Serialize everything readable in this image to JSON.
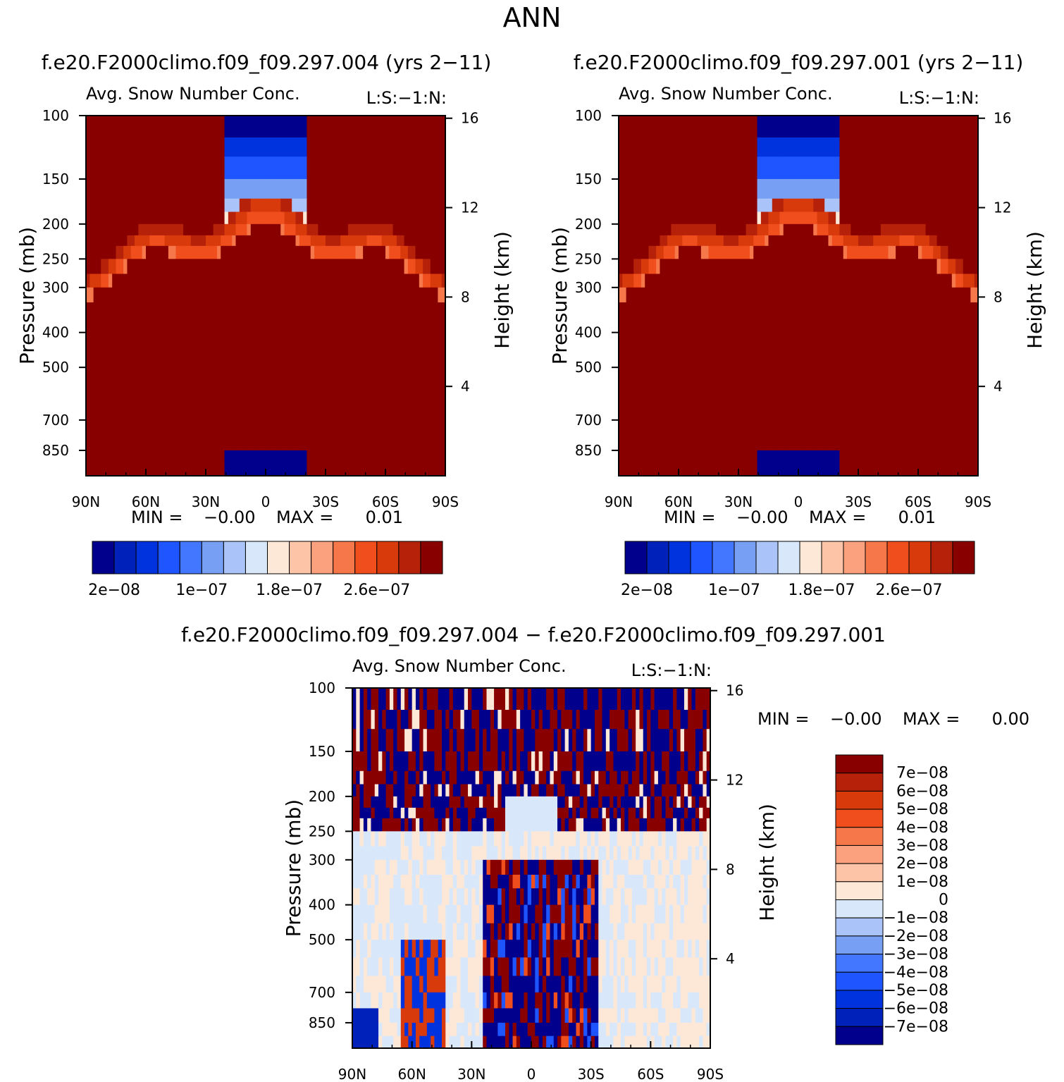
{
  "page_title": "ANN",
  "chart_data": [
    {
      "type": "heatmap",
      "title": "f.e20.F2000climo.f09_f09.297.004 (yrs 2−11)",
      "subtitle": "Avg. Snow Number Conc.",
      "corner_label": "L:S:−1:N:",
      "xlabel": "",
      "ylabel": "Pressure (mb)",
      "ylabel_right": "Height (km)",
      "x_ticks": [
        "90N",
        "60N",
        "30N",
        "0",
        "30S",
        "60S",
        "90S"
      ],
      "y_ticks": [
        "100",
        "150",
        "200",
        "250",
        "300",
        "400",
        "500",
        "700",
        "850"
      ],
      "y_ticks_right": [
        "16",
        "12",
        "8",
        "4"
      ],
      "y_scale": "log",
      "ylim": [
        100,
        1000
      ],
      "min_label": "MIN =",
      "min_value": "−0.00",
      "max_label": "MAX =",
      "max_value": "0.01",
      "colorbar": {
        "orientation": "horizontal",
        "colors": [
          "#00008c",
          "#0022bb",
          "#0033dd",
          "#1f55ff",
          "#4477ff",
          "#77a0f5",
          "#aac4f9",
          "#d8e8fa",
          "#fde8d8",
          "#fdc4a8",
          "#fca17e",
          "#f6784a",
          "#f04e1c",
          "#d93a0c",
          "#b6210a",
          "#880000"
        ],
        "tick_labels": [
          "2e−08",
          "1e−07",
          "1.8e−07",
          "2.6e−07"
        ]
      }
    },
    {
      "type": "heatmap",
      "title": "f.e20.F2000climo.f09_f09.297.001 (yrs 2−11)",
      "subtitle": "Avg. Snow Number Conc.",
      "corner_label": "L:S:−1:N:",
      "xlabel": "",
      "ylabel": "Pressure (mb)",
      "ylabel_right": "Height (km)",
      "x_ticks": [
        "90N",
        "60N",
        "30N",
        "0",
        "30S",
        "60S",
        "90S"
      ],
      "y_ticks": [
        "100",
        "150",
        "200",
        "250",
        "300",
        "400",
        "500",
        "700",
        "850"
      ],
      "y_ticks_right": [
        "16",
        "12",
        "8",
        "4"
      ],
      "y_scale": "log",
      "ylim": [
        100,
        1000
      ],
      "min_label": "MIN =",
      "min_value": "−0.00",
      "max_label": "MAX =",
      "max_value": "0.01",
      "colorbar": {
        "orientation": "horizontal",
        "colors": [
          "#00008c",
          "#0022bb",
          "#0033dd",
          "#1f55ff",
          "#4477ff",
          "#77a0f5",
          "#aac4f9",
          "#d8e8fa",
          "#fde8d8",
          "#fdc4a8",
          "#fca17e",
          "#f6784a",
          "#f04e1c",
          "#d93a0c",
          "#b6210a",
          "#880000"
        ],
        "tick_labels": [
          "2e−08",
          "1e−07",
          "1.8e−07",
          "2.6e−07"
        ]
      }
    },
    {
      "type": "heatmap",
      "title": "f.e20.F2000climo.f09_f09.297.004 − f.e20.F2000climo.f09_f09.297.001",
      "subtitle": "Avg. Snow Number Conc.",
      "corner_label": "L:S:−1:N:",
      "xlabel": "",
      "ylabel": "Pressure (mb)",
      "ylabel_right": "Height (km)",
      "x_ticks": [
        "90N",
        "60N",
        "30N",
        "0",
        "30S",
        "60S",
        "90S"
      ],
      "y_ticks": [
        "100",
        "150",
        "200",
        "250",
        "300",
        "400",
        "500",
        "700",
        "850"
      ],
      "y_ticks_right": [
        "16",
        "12",
        "8",
        "4"
      ],
      "y_scale": "log",
      "ylim": [
        100,
        1000
      ],
      "min_label": "MIN =",
      "min_value": "−0.00",
      "max_label": "MAX =",
      "max_value": "0.00",
      "colorbar": {
        "orientation": "vertical",
        "colors": [
          "#880000",
          "#b6210a",
          "#d93a0c",
          "#f04e1c",
          "#f6784a",
          "#fca17e",
          "#fdc4a8",
          "#fde8d8",
          "#d8e8fa",
          "#aac4f9",
          "#77a0f5",
          "#4477ff",
          "#1f55ff",
          "#0033dd",
          "#0022bb",
          "#00008c"
        ],
        "tick_labels": [
          "7e−08",
          "6e−08",
          "5e−08",
          "4e−08",
          "3e−08",
          "2e−08",
          "1e−08",
          "0",
          "−1e−08",
          "−2e−08",
          "−3e−08",
          "−4e−08",
          "−5e−08",
          "−6e−08",
          "−7e−08"
        ]
      }
    }
  ]
}
